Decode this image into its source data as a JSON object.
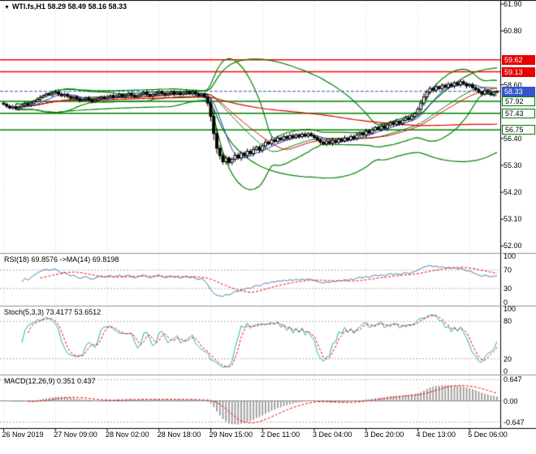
{
  "title": {
    "symbol": "WTI.fs,H1",
    "ohlc_text": "58.29 58.49 58.16 58.33"
  },
  "icons": {
    "dropdown": "▼"
  },
  "main": {
    "grid_labels": [
      "61.90",
      "60.80",
      "58.60",
      "56.40",
      "55.30",
      "54.20",
      "53.10",
      "52.00"
    ],
    "red_line_labels": [
      "59.62",
      "59.13"
    ],
    "green_line_labels": [
      "57.92",
      "57.43",
      "56.75"
    ],
    "price_label": "58.33"
  },
  "panels": {
    "rsi": {
      "label": "RSI(18) 69.8576  ->MA(14) 69.8198",
      "axis": [
        "100",
        "70",
        "30",
        "0"
      ],
      "levels": [
        70,
        30
      ]
    },
    "stoch": {
      "label": "Stoch(5,3,3) 73.4177 53.6512",
      "axis": [
        "100",
        "80",
        "20",
        "0"
      ],
      "levels": [
        80,
        20
      ]
    },
    "macd": {
      "label": "MACD(12,26,9) 0.351 0.437",
      "axis": [
        "0.647",
        "0.00",
        "-0.647"
      ],
      "levels": [
        0.647,
        -0.647
      ]
    }
  },
  "time_labels": [
    "26 Nov 2019",
    "27 Nov 09:00",
    "28 Nov 02:00",
    "28 Nov 18:00",
    "29 Nov 15:00",
    "2 Dec 11:00",
    "3 Dec 04:00",
    "3 Dec 20:00",
    "4 Dec 13:00",
    "5 Dec 06:00"
  ],
  "colors": {
    "bollinger": "#008000",
    "ma_fast": "#2233cc",
    "ma_slow": "#dd0000",
    "ma_long": "#dd0000",
    "resistance": "#ff0000",
    "support": "#008000",
    "price_line": "#3355cc",
    "grid": "#d4d4d4",
    "separator": "#909090",
    "border": "#000000",
    "rsi_line": "#4682b4",
    "rsi_signal": "#ff0000",
    "stoch_main": "#20b2aa",
    "stoch_signal": "#ff0000",
    "macd_hist": "#9a9a9a",
    "macd_signal": "#ff0000",
    "candle_up": "#ffffff",
    "candle_down": "#000000",
    "candle_border": "#000000"
  },
  "chart_data": {
    "type": "candlestick",
    "symbol": "WTI.fs",
    "timeframe": "H1",
    "title": "WTI.fs,H1",
    "current_candle": {
      "open": 58.29,
      "high": 58.49,
      "low": 58.16,
      "close": 58.33
    },
    "ylim": [
      52.0,
      61.9
    ],
    "x_ticks": [
      "26 Nov 2019",
      "27 Nov 09:00",
      "28 Nov 02:00",
      "28 Nov 18:00",
      "29 Nov 15:00",
      "2 Dec 11:00",
      "3 Dec 04:00",
      "3 Dec 20:00",
      "4 Dec 13:00",
      "5 Dec 06:00"
    ],
    "x_tick_candle_indices": [
      0,
      17,
      34,
      51,
      68,
      85,
      102,
      119,
      136,
      153
    ],
    "closes": [
      57.8,
      57.72,
      57.65,
      57.7,
      57.62,
      57.68,
      57.75,
      57.82,
      57.78,
      57.85,
      57.92,
      58.0,
      58.08,
      58.15,
      58.22,
      58.18,
      58.25,
      58.3,
      58.22,
      58.15,
      58.2,
      58.12,
      58.05,
      58.1,
      58.02,
      57.95,
      58.0,
      58.06,
      57.98,
      57.92,
      57.98,
      58.05,
      58.1,
      58.04,
      58.1,
      58.16,
      58.08,
      58.14,
      58.2,
      58.12,
      58.18,
      58.24,
      58.16,
      58.1,
      58.16,
      58.22,
      58.28,
      58.2,
      58.14,
      58.2,
      58.26,
      58.32,
      58.24,
      58.18,
      58.24,
      58.3,
      58.22,
      58.28,
      58.2,
      58.26,
      58.32,
      58.24,
      58.3,
      58.22,
      58.16,
      58.22,
      58.1,
      57.85,
      57.3,
      56.6,
      56.0,
      55.7,
      55.45,
      55.6,
      55.42,
      55.55,
      55.72,
      55.6,
      55.8,
      55.7,
      55.88,
      55.78,
      55.95,
      56.05,
      55.92,
      56.1,
      56.25,
      56.18,
      56.35,
      56.28,
      56.42,
      56.35,
      56.48,
      56.4,
      56.52,
      56.45,
      56.55,
      56.48,
      56.58,
      56.5,
      56.6,
      56.52,
      56.44,
      56.35,
      56.25,
      56.18,
      56.28,
      56.2,
      56.32,
      56.24,
      56.36,
      56.3,
      56.42,
      56.35,
      56.48,
      56.4,
      56.55,
      56.62,
      56.55,
      56.7,
      56.62,
      56.75,
      56.85,
      56.78,
      56.9,
      56.82,
      56.95,
      57.05,
      56.98,
      57.1,
      57.02,
      57.15,
      57.25,
      57.18,
      57.3,
      57.42,
      57.6,
      57.85,
      58.1,
      58.3,
      58.45,
      58.38,
      58.52,
      58.44,
      58.58,
      58.5,
      58.62,
      58.55,
      58.68,
      58.6,
      58.72,
      58.65,
      58.55,
      58.6,
      58.48,
      58.4,
      58.3,
      58.22,
      58.35,
      58.28,
      58.2,
      58.29,
      58.33
    ],
    "overlays": {
      "bollinger_periods": [
        20,
        55
      ],
      "bollinger_deviation": 2,
      "ma_fast_period": 8,
      "ma_slow_period": 24,
      "ma_long_period": 96
    },
    "indicators": {
      "rsi": {
        "period": 18,
        "value": 69.8576,
        "ma_period": 14,
        "ma_value": 69.8198,
        "scale": [
          0,
          100
        ],
        "levels": [
          70,
          30
        ]
      },
      "stochastic": {
        "params": [
          5,
          3,
          3
        ],
        "k": 73.4177,
        "d": 53.6512,
        "scale": [
          0,
          100
        ],
        "levels": [
          80,
          20
        ]
      },
      "macd": {
        "params": [
          12,
          26,
          9
        ],
        "main": 0.351,
        "signal": 0.437,
        "scale": [
          -0.647,
          0.647
        ]
      }
    },
    "horizontal_lines": {
      "resistance": [
        59.62,
        59.13
      ],
      "support": [
        57.92,
        57.43,
        56.75
      ],
      "current_price": 58.33
    }
  }
}
